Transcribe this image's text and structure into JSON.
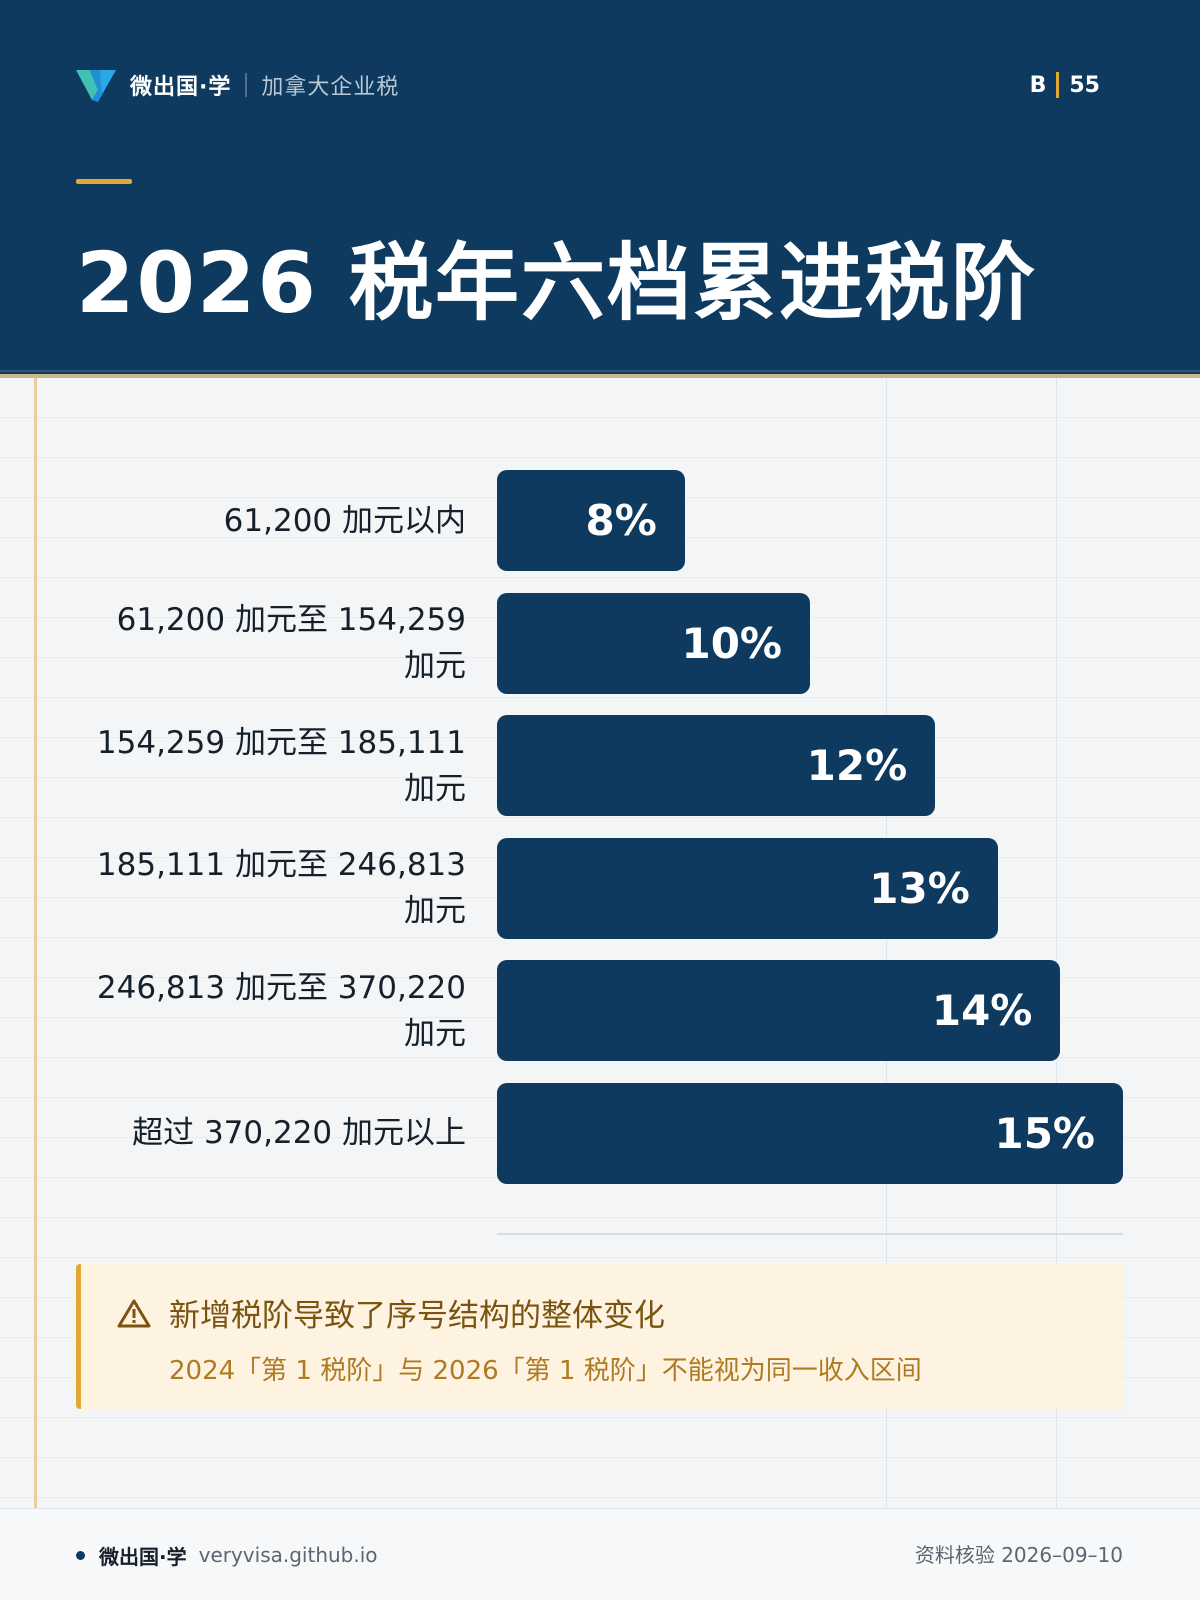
{
  "header": {
    "brand_name": "微出国·学",
    "brand_sub": "加拿大企业税",
    "page_letter": "B",
    "page_number": "55",
    "title": "2026 税年六档累进税阶",
    "bg_color": "#0d3a5e",
    "accent_color": "#e1a834"
  },
  "chart_data": {
    "type": "bar",
    "orientation": "horizontal",
    "categories": [
      [
        "61,200 加元以内"
      ],
      [
        "61,200 加元至 154,259",
        "加元"
      ],
      [
        "154,259 加元至 185,111",
        "加元"
      ],
      [
        "185,111 加元至 246,813",
        "加元"
      ],
      [
        "246,813 加元至 370,220",
        "加元"
      ],
      [
        "超过 370,220 加元以上"
      ]
    ],
    "values": [
      8,
      10,
      12,
      13,
      14,
      15
    ],
    "value_labels": [
      "8%",
      "10%",
      "12%",
      "13%",
      "14%",
      "15%"
    ],
    "unit": "%",
    "xlim": [
      5,
      15
    ],
    "grid": true,
    "bar_color": "#0d3a5e"
  },
  "note": {
    "icon": "warning-icon",
    "title": "新增税阶导致了序号结构的整体变化",
    "body": "2024「第 1 税阶」与 2026「第 1 税阶」不能视为同一收入区间"
  },
  "footer": {
    "brand": "微出国·学",
    "url": "veryvisa.github.io",
    "verified": "资料核验 2026–09–10"
  }
}
